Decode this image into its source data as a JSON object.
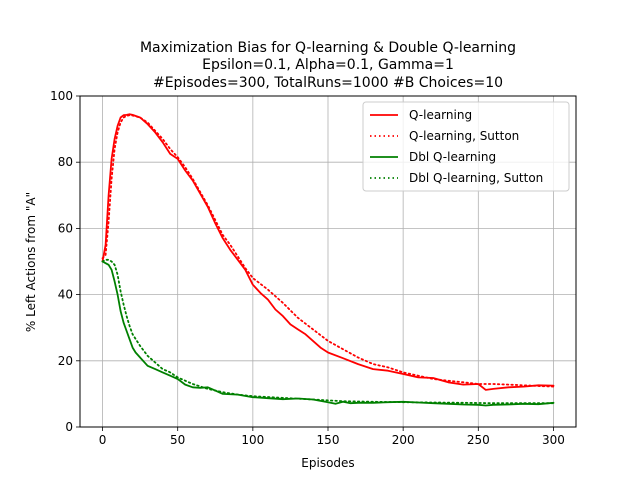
{
  "chart_data": {
    "type": "line",
    "title": [
      "Maximization Bias for Q-learning & Double Q-learning",
      "Epsilon=0.1, Alpha=0.1, Gamma=1",
      "#Episodes=300, TotalRuns=1000 #B Choices=10"
    ],
    "xlabel": "Episodes",
    "ylabel": "% Left Actions from \"A\"",
    "xlim": [
      -15,
      315
    ],
    "ylim": [
      0,
      100
    ],
    "xticks": [
      0,
      50,
      100,
      150,
      200,
      250,
      300
    ],
    "yticks": [
      0,
      20,
      40,
      60,
      80,
      100
    ],
    "grid": true,
    "legend_position": "top-right",
    "series": [
      {
        "name": "Q-learning",
        "color": "#ff0000",
        "style": "solid",
        "x": [
          0,
          2,
          4,
          6,
          8,
          10,
          12,
          14,
          16,
          18,
          20,
          25,
          30,
          35,
          40,
          45,
          50,
          55,
          60,
          65,
          70,
          75,
          80,
          85,
          90,
          95,
          100,
          105,
          110,
          115,
          120,
          125,
          130,
          135,
          140,
          145,
          150,
          160,
          170,
          180,
          190,
          200,
          210,
          220,
          230,
          240,
          250,
          255,
          260,
          270,
          280,
          290,
          300
        ],
        "y": [
          50,
          55,
          70,
          81,
          87,
          91,
          93.5,
          94.2,
          94.3,
          94.5,
          94.3,
          93.5,
          91.5,
          89,
          86,
          82.5,
          81,
          77.5,
          74.5,
          70.5,
          66.5,
          61.5,
          57,
          53.5,
          50.5,
          47.5,
          43,
          40.5,
          38.5,
          35.5,
          33.5,
          31,
          29.5,
          28,
          26,
          24,
          22.5,
          20.8,
          19,
          17.5,
          17,
          16,
          15,
          14.8,
          13.5,
          12.8,
          13,
          11.2,
          11.5,
          12,
          12.2,
          12.6,
          12.5
        ]
      },
      {
        "name": "Q-learning, Sutton",
        "color": "#ff0000",
        "style": "dotted",
        "x": [
          0,
          2,
          4,
          6,
          8,
          10,
          12,
          14,
          16,
          18,
          20,
          25,
          30,
          35,
          40,
          45,
          50,
          55,
          60,
          65,
          70,
          75,
          80,
          85,
          90,
          95,
          100,
          110,
          120,
          130,
          140,
          150,
          160,
          170,
          180,
          190,
          200,
          210,
          220,
          230,
          240,
          250,
          260,
          270,
          280,
          290,
          300
        ],
        "y": [
          51,
          52,
          62,
          75,
          84,
          89,
          92,
          93.5,
          94,
          94.2,
          94.1,
          93.5,
          92,
          89.5,
          87,
          84,
          81.5,
          78.5,
          75,
          71,
          67,
          62.5,
          58,
          55,
          51.5,
          48,
          45,
          41.5,
          37.5,
          33,
          29.5,
          26,
          23.5,
          21,
          19,
          18,
          16.5,
          15.5,
          14.5,
          14,
          13.5,
          13,
          13,
          12.8,
          12.6,
          12.4,
          12.2
        ]
      },
      {
        "name": "Dbl Q-learning",
        "color": "#008000",
        "style": "solid",
        "x": [
          0,
          2,
          4,
          6,
          8,
          10,
          12,
          14,
          16,
          18,
          20,
          22,
          25,
          30,
          35,
          40,
          45,
          50,
          55,
          60,
          65,
          70,
          75,
          80,
          90,
          100,
          110,
          120,
          130,
          140,
          150,
          155,
          160,
          165,
          170,
          180,
          190,
          200,
          210,
          220,
          230,
          240,
          250,
          255,
          260,
          270,
          280,
          290,
          300
        ],
        "y": [
          50,
          49.5,
          49,
          47.5,
          44,
          40,
          35,
          31.5,
          29,
          26.5,
          24,
          22.5,
          21,
          18.5,
          17.5,
          16.5,
          15.5,
          14.5,
          12.8,
          12,
          11.8,
          12,
          11,
          10,
          9.8,
          9,
          8.7,
          8.4,
          8.6,
          8.3,
          7.5,
          7,
          7.6,
          7.2,
          7.3,
          7.3,
          7.5,
          7.6,
          7.4,
          7.2,
          7.0,
          6.8,
          6.7,
          6.5,
          6.7,
          6.8,
          7.0,
          6.9,
          7.3
        ]
      },
      {
        "name": "Dbl Q-learning, Sutton",
        "color": "#008000",
        "style": "dotted",
        "x": [
          0,
          2,
          4,
          6,
          8,
          10,
          12,
          14,
          16,
          18,
          20,
          25,
          30,
          35,
          40,
          45,
          50,
          60,
          70,
          80,
          90,
          100,
          120,
          140,
          160,
          180,
          200,
          220,
          240,
          260,
          280,
          300
        ],
        "y": [
          50,
          50.5,
          50.5,
          50,
          49,
          46,
          41,
          37,
          33.5,
          30.5,
          28,
          24.5,
          21.5,
          19.5,
          17.5,
          16.5,
          15,
          13,
          11.5,
          10.5,
          9.8,
          9.3,
          8.8,
          8.3,
          7.8,
          7.6,
          7.5,
          7.4,
          7.3,
          7.2,
          7.2,
          7.2
        ]
      }
    ]
  }
}
